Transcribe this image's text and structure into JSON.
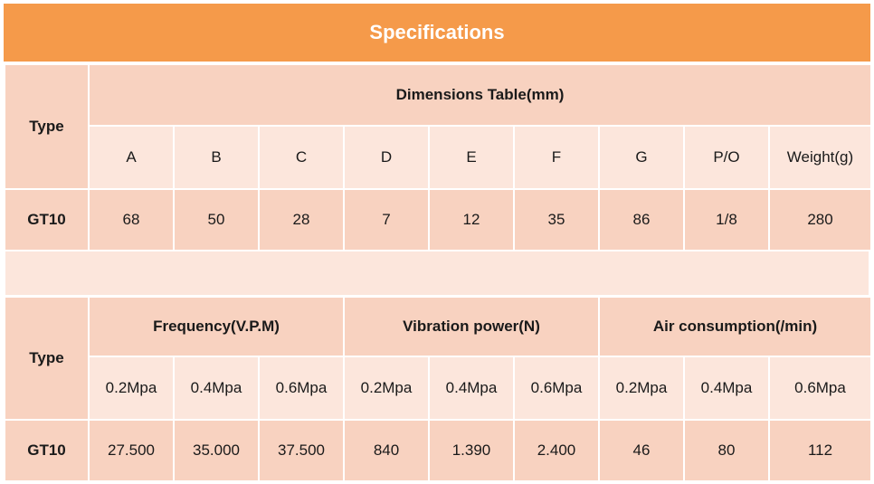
{
  "title": "Specifications",
  "table1": {
    "type_label": "Type",
    "group_header": "Dimensions Table(mm)",
    "columns": [
      "A",
      "B",
      "C",
      "D",
      "E",
      "F",
      "G",
      "P/O",
      "Weight(g)"
    ],
    "row": {
      "model": "GT10",
      "values": [
        "68",
        "50",
        "28",
        "7",
        "12",
        "35",
        "86",
        "1/8",
        "280"
      ]
    }
  },
  "table2": {
    "type_label": "Type",
    "groups": [
      "Frequency(V.P.M)",
      "Vibration power(N)",
      "Air consumption(/min)"
    ],
    "columns": [
      "0.2Mpa",
      "0.4Mpa",
      "0.6Mpa",
      "0.2Mpa",
      "0.4Mpa",
      "0.6Mpa",
      "0.2Mpa",
      "0.4Mpa",
      "0.6Mpa"
    ],
    "row": {
      "model": "GT10",
      "values": [
        "27.500",
        "35.000",
        "37.500",
        "840",
        "1.390",
        "2.400",
        "46",
        "80",
        "112"
      ]
    }
  }
}
